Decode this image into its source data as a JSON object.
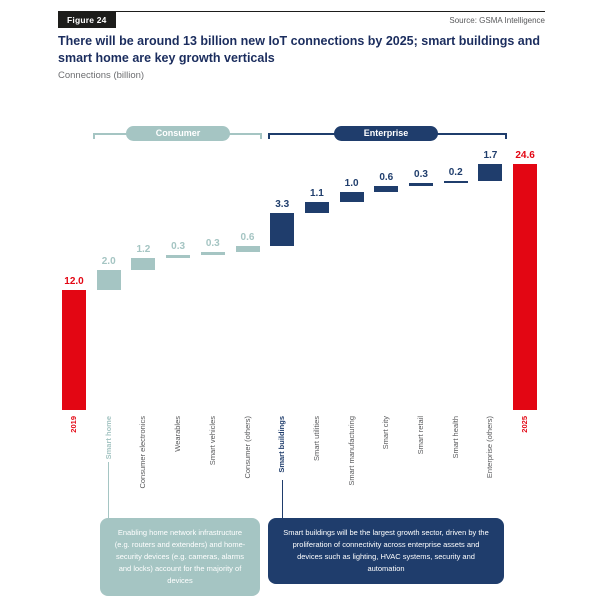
{
  "header": {
    "figure_badge": "Figure 24",
    "source": "Source: GSMA Intelligence",
    "title": "There will be around 13 billion new IoT connections by 2025; smart buildings and smart home are key growth verticals",
    "subtitle": "Connections (billion)"
  },
  "colors": {
    "red": "#e30613",
    "consumer": "#a5c5c3",
    "enterprise": "#1f3d6c",
    "title_navy": "#1b2d5e",
    "gray_text": "#58595b"
  },
  "legend": {
    "consumer_label": "Consumer",
    "enterprise_label": "Enterprise"
  },
  "chart_data": {
    "type": "waterfall",
    "title": "There will be around 13 billion new IoT connections by 2025; smart buildings and smart home are key growth verticals",
    "ylabel": "Connections (billion)",
    "ylim": [
      0,
      24.6
    ],
    "grid": false,
    "bars": [
      {
        "label": "2019",
        "value": 12.0,
        "display": "12.0",
        "kind": "total",
        "group": "year",
        "emphasis": true
      },
      {
        "label": "Smart home",
        "value": 2.0,
        "display": "2.0",
        "kind": "delta",
        "group": "consumer",
        "emphasis": true
      },
      {
        "label": "Consumer electronics",
        "value": 1.2,
        "display": "1.2",
        "kind": "delta",
        "group": "consumer",
        "emphasis": false
      },
      {
        "label": "Wearables",
        "value": 0.3,
        "display": "0.3",
        "kind": "delta",
        "group": "consumer",
        "emphasis": false
      },
      {
        "label": "Smart vehicles",
        "value": 0.3,
        "display": "0.3",
        "kind": "delta",
        "group": "consumer",
        "emphasis": false
      },
      {
        "label": "Consumer (others)",
        "value": 0.6,
        "display": "0.6",
        "kind": "delta",
        "group": "consumer",
        "emphasis": false
      },
      {
        "label": "Smart buildings",
        "value": 3.3,
        "display": "3.3",
        "kind": "delta",
        "group": "enterprise",
        "emphasis": true
      },
      {
        "label": "Smart utilities",
        "value": 1.1,
        "display": "1.1",
        "kind": "delta",
        "group": "enterprise",
        "emphasis": false
      },
      {
        "label": "Smart manufacturing",
        "value": 1.0,
        "display": "1.0",
        "kind": "delta",
        "group": "enterprise",
        "emphasis": false
      },
      {
        "label": "Smart city",
        "value": 0.6,
        "display": "0.6",
        "kind": "delta",
        "group": "enterprise",
        "emphasis": false
      },
      {
        "label": "Smart retail",
        "value": 0.3,
        "display": "0.3",
        "kind": "delta",
        "group": "enterprise",
        "emphasis": false
      },
      {
        "label": "Smart health",
        "value": 0.2,
        "display": "0.2",
        "kind": "delta",
        "group": "enterprise",
        "emphasis": false
      },
      {
        "label": "Enterprise (others)",
        "value": 1.7,
        "display": "1.7",
        "kind": "delta",
        "group": "enterprise",
        "emphasis": false
      },
      {
        "label": "2025",
        "value": 24.6,
        "display": "24.6",
        "kind": "total",
        "group": "year",
        "emphasis": true
      }
    ]
  },
  "callouts": {
    "consumer": "Enabling home network infrastructure (e.g. routers and extenders) and home-security devices (e.g. cameras, alarms and locks) account for the majority of devices",
    "enterprise": "Smart buildings will be the largest growth sector, driven by the proliferation of connectivity across enterprise assets and devices such as lighting, HVAC systems, security and automation"
  }
}
